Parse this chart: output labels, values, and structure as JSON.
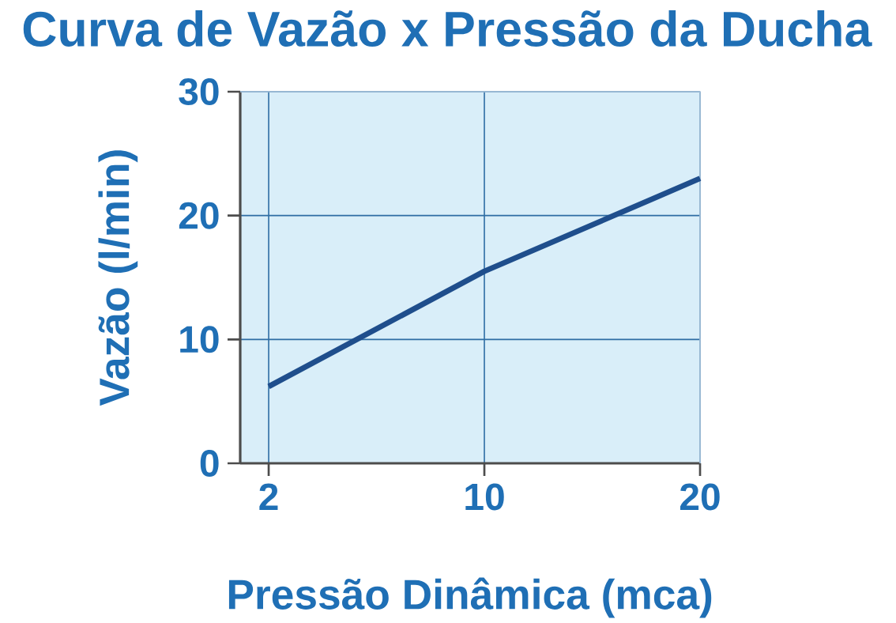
{
  "chart_data": {
    "type": "line",
    "title": "Curva de Vazão x Pressão da Ducha",
    "xlabel": "Pressão Dinâmica (mca)",
    "ylabel": "Vazão (l/min)",
    "categories": [
      "2",
      "10",
      "20"
    ],
    "series": [
      {
        "color": "#1f4e8c",
        "values": [
          6.2,
          15.5,
          23
        ]
      }
    ],
    "ylim": [
      0,
      30
    ],
    "yticks": [
      0,
      10,
      20,
      30
    ],
    "grid": true,
    "marker": "none",
    "line_style": "solid"
  }
}
